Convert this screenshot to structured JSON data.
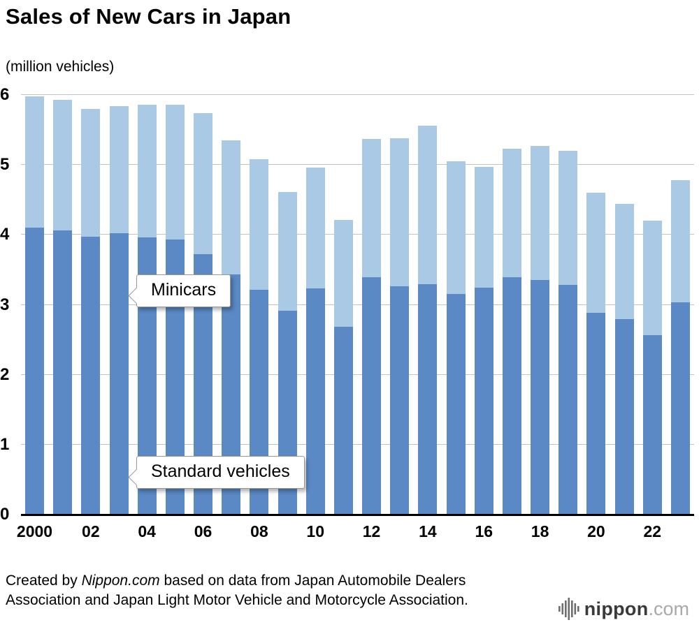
{
  "title": "Sales of New Cars in Japan",
  "subtitle": "(million vehicles)",
  "callouts": {
    "minicars": "Minicars",
    "standard": "Standard vehicles"
  },
  "footer": {
    "credit_prefix": "Created by ",
    "credit_source": "Nippon.com",
    "credit_suffix": " based on data from Japan Automobile Dealers Association and Japan Light Motor Vehicle and Motorcycle Association."
  },
  "logo": {
    "word": "nippon",
    "tld": ".com",
    "icon": "soundwave-bars-icon"
  },
  "colors": {
    "standard": "#5b89c5",
    "minicars": "#a9c9e5",
    "grid": "#c3c3c3",
    "axis": "#000000"
  },
  "chart_data": {
    "type": "bar",
    "stacked": true,
    "title": "Sales of New Cars in Japan",
    "ylabel": "(million vehicles)",
    "ylim": [
      0,
      6
    ],
    "yticks": [
      0,
      1,
      2,
      3,
      4,
      5,
      6
    ],
    "grid": true,
    "categories": [
      2000,
      2001,
      2002,
      2003,
      2004,
      2005,
      2006,
      2007,
      2008,
      2009,
      2010,
      2011,
      2012,
      2013,
      2014,
      2015,
      2016,
      2017,
      2018,
      2019,
      2020,
      2021,
      2022,
      2023
    ],
    "x_tick_labels": [
      "2000",
      "",
      "02",
      "",
      "04",
      "",
      "06",
      "",
      "08",
      "",
      "10",
      "",
      "12",
      "",
      "14",
      "",
      "16",
      "",
      "18",
      "",
      "20",
      "",
      "22",
      ""
    ],
    "series": [
      {
        "name": "Standard vehicles",
        "color": "#5b89c5",
        "values": [
          4.1,
          4.06,
          3.97,
          4.02,
          3.96,
          3.93,
          3.72,
          3.43,
          3.21,
          2.92,
          3.23,
          2.69,
          3.39,
          3.26,
          3.29,
          3.15,
          3.24,
          3.39,
          3.35,
          3.28,
          2.89,
          2.8,
          2.57,
          3.04
        ]
      },
      {
        "name": "Minicars",
        "color": "#a9c9e5",
        "values": [
          1.88,
          1.87,
          1.83,
          1.82,
          1.9,
          1.93,
          2.02,
          1.92,
          1.87,
          1.69,
          1.73,
          1.52,
          1.98,
          2.12,
          2.27,
          1.9,
          1.73,
          1.84,
          1.92,
          1.92,
          1.71,
          1.64,
          1.63,
          1.74
        ]
      }
    ]
  }
}
